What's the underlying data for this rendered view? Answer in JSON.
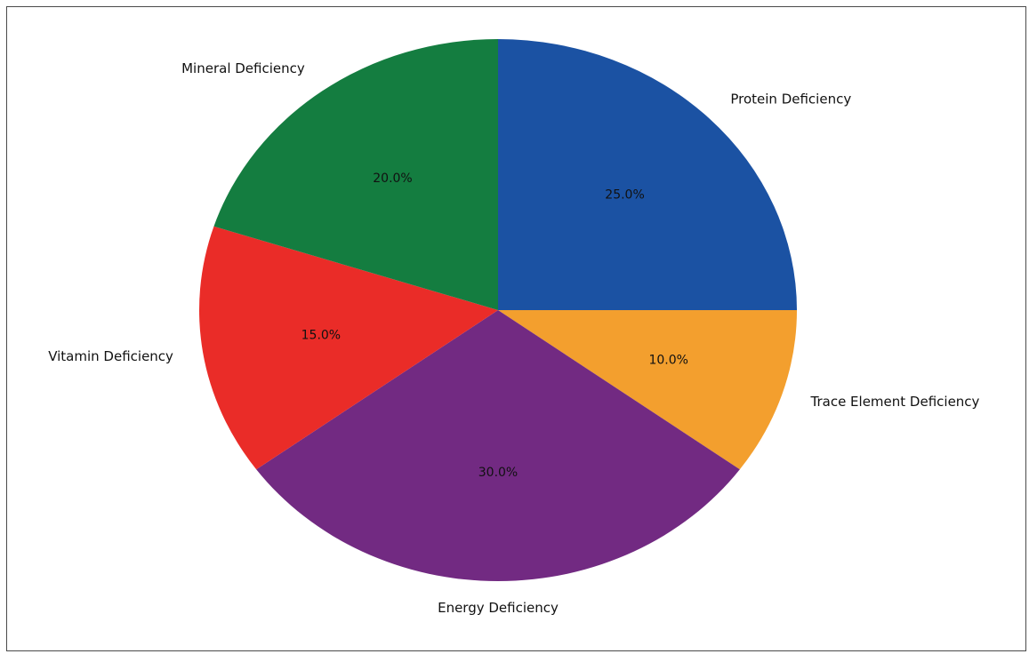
{
  "chart_data": {
    "type": "pie",
    "title": "",
    "categories": [
      "Protein Deficiency",
      "Trace Element Deficiency",
      "Energy Deficiency",
      "Vitamin Deficiency",
      "Mineral Deficiency"
    ],
    "values": [
      25,
      10,
      30,
      15,
      20
    ],
    "percent_labels": [
      "25.0%",
      "10.0%",
      "30.0%",
      "15.0%",
      "20.0%"
    ],
    "colors": [
      "#1b52a3",
      "#f39f2e",
      "#722a82",
      "#ea2c28",
      "#147d40"
    ],
    "start_angle_deg": 90,
    "direction": "clockwise"
  }
}
